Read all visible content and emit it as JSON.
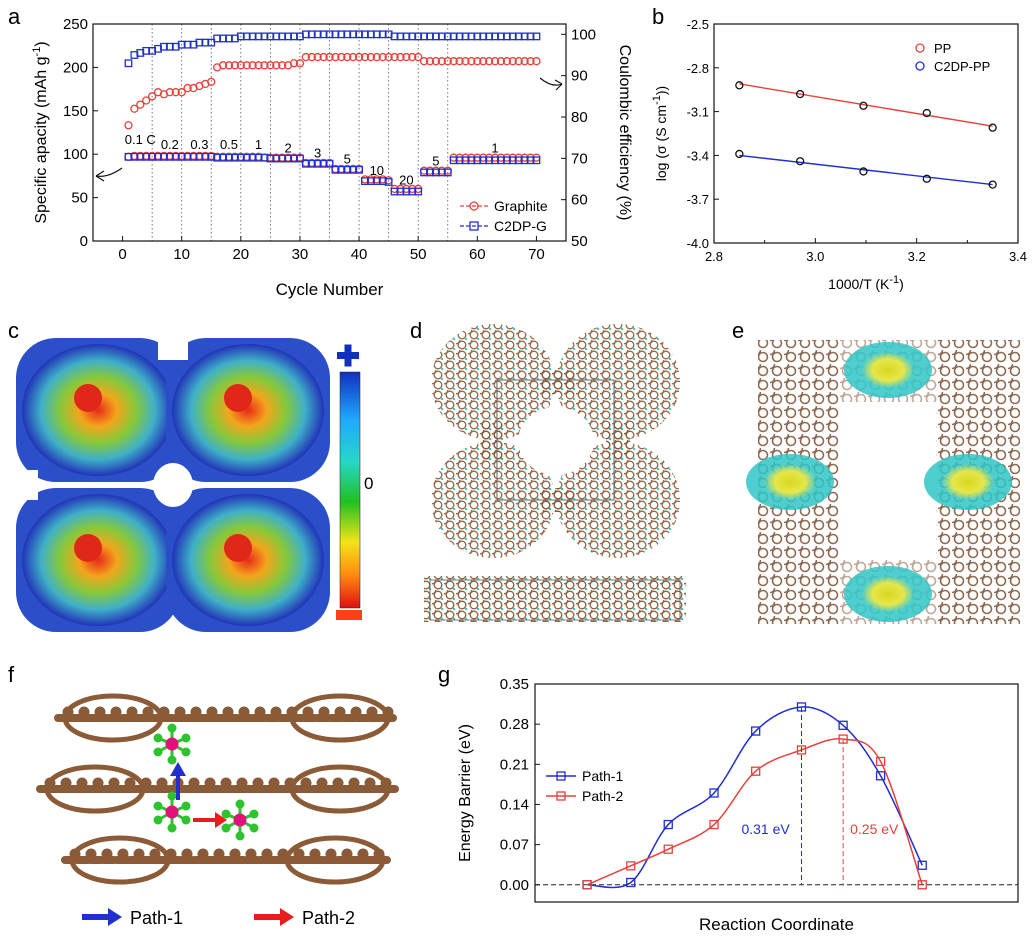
{
  "panels": {
    "a": "a",
    "b": "b",
    "c": "c",
    "d": "d",
    "e": "e",
    "f": "f",
    "g": "g"
  },
  "colors": {
    "red": "#e8403a",
    "blue": "#1f2fd0",
    "black": "#111111"
  },
  "chart_data": [
    {
      "id": "a",
      "type": "scatter",
      "title": "",
      "xlabel": "Cycle Number",
      "ylabel": "Specific apacity (mAh g-1)",
      "ylabel_parts": [
        "Specific apacity (mAh g",
        "-1",
        ")"
      ],
      "y2label": "Coulombic efficiency (%)",
      "xlim": [
        -5,
        75
      ],
      "ylim": [
        0,
        250
      ],
      "y2lim": [
        50,
        102.5
      ],
      "xticks": [
        0,
        10,
        20,
        30,
        40,
        50,
        60,
        70
      ],
      "yticks": [
        0,
        50,
        100,
        150,
        200,
        250
      ],
      "y2ticks": [
        50,
        60,
        70,
        80,
        90,
        100
      ],
      "vlines": [
        5,
        10,
        15,
        20,
        25,
        30,
        35,
        40,
        45,
        50,
        55
      ],
      "rate_labels": [
        {
          "text": "0.1 C",
          "x": 3,
          "y": 112
        },
        {
          "text": "0.2",
          "x": 8,
          "y": 106
        },
        {
          "text": "0.3",
          "x": 13,
          "y": 106
        },
        {
          "text": "0.5",
          "x": 18,
          "y": 106
        },
        {
          "text": "1",
          "x": 23,
          "y": 106
        },
        {
          "text": "2",
          "x": 28,
          "y": 102
        },
        {
          "text": "3",
          "x": 33,
          "y": 96
        },
        {
          "text": "5",
          "x": 38,
          "y": 89
        },
        {
          "text": "10",
          "x": 43,
          "y": 76
        },
        {
          "text": "20",
          "x": 48,
          "y": 65
        },
        {
          "text": "5",
          "x": 53,
          "y": 87
        },
        {
          "text": "1",
          "x": 63,
          "y": 102
        }
      ],
      "legend": [
        {
          "name": "Graphite",
          "color": "#e8403a",
          "marker": "circle"
        },
        {
          "name": "C2DP-G",
          "color": "#1f2fd0",
          "marker": "square"
        }
      ],
      "legend_position": "bottom-right",
      "series": [
        {
          "name": "Graphite capacity",
          "axis": "left",
          "color": "#e8403a",
          "marker": "circle",
          "x": [
            1,
            2,
            3,
            4,
            5,
            6,
            7,
            8,
            9,
            10,
            11,
            12,
            13,
            14,
            15,
            16,
            17,
            18,
            19,
            20,
            21,
            22,
            23,
            24,
            25,
            26,
            27,
            28,
            29,
            30,
            31,
            32,
            33,
            34,
            35,
            36,
            37,
            38,
            39,
            40,
            41,
            42,
            43,
            44,
            45,
            46,
            47,
            48,
            49,
            50,
            51,
            52,
            53,
            54,
            55,
            56,
            57,
            58,
            59,
            60,
            61,
            62,
            63,
            64,
            65,
            66,
            67,
            68,
            69,
            70
          ],
          "y": [
            97,
            98,
            98,
            98,
            98,
            98,
            98,
            98,
            98,
            98,
            98,
            98,
            98,
            98,
            98,
            97,
            97,
            97,
            97,
            97,
            97,
            97,
            97,
            96,
            96,
            96,
            96,
            96,
            96,
            96,
            90,
            90,
            90,
            90,
            90,
            83,
            83,
            83,
            83,
            83,
            71,
            71,
            71,
            71,
            70,
            60,
            60,
            60,
            60,
            60,
            81,
            81,
            81,
            81,
            81,
            96,
            96,
            96,
            96,
            96,
            96,
            96,
            96,
            96,
            96,
            96,
            96,
            96,
            96,
            96
          ]
        },
        {
          "name": "C2DP-G capacity",
          "axis": "left",
          "color": "#1f2fd0",
          "marker": "square",
          "x": [
            1,
            2,
            3,
            4,
            5,
            6,
            7,
            8,
            9,
            10,
            11,
            12,
            13,
            14,
            15,
            16,
            17,
            18,
            19,
            20,
            21,
            22,
            23,
            24,
            25,
            26,
            27,
            28,
            29,
            30,
            31,
            32,
            33,
            34,
            35,
            36,
            37,
            38,
            39,
            40,
            41,
            42,
            43,
            44,
            45,
            46,
            47,
            48,
            49,
            50,
            51,
            52,
            53,
            54,
            55,
            56,
            57,
            58,
            59,
            60,
            61,
            62,
            63,
            64,
            65,
            66,
            67,
            68,
            69,
            70
          ],
          "y": [
            97,
            97,
            97,
            97,
            97,
            97,
            97,
            97,
            97,
            97,
            97,
            97,
            97,
            97,
            97,
            96,
            96,
            96,
            96,
            96,
            96,
            96,
            96,
            96,
            95,
            95,
            95,
            95,
            95,
            95,
            89,
            89,
            89,
            89,
            89,
            82,
            82,
            82,
            82,
            82,
            69,
            69,
            69,
            69,
            68,
            57,
            57,
            57,
            57,
            57,
            79,
            79,
            79,
            79,
            79,
            93,
            93,
            93,
            93,
            93,
            93,
            93,
            93,
            93,
            93,
            93,
            93,
            93,
            93,
            93
          ]
        },
        {
          "name": "Graphite coulombic efficiency",
          "axis": "right",
          "color": "#e8403a",
          "marker": "circle",
          "x": [
            1,
            2,
            3,
            4,
            5,
            6,
            7,
            8,
            9,
            10,
            11,
            12,
            13,
            14,
            15,
            16,
            17,
            18,
            19,
            20,
            21,
            22,
            23,
            24,
            25,
            26,
            27,
            28,
            29,
            30,
            31,
            32,
            33,
            34,
            35,
            36,
            37,
            38,
            39,
            40,
            41,
            42,
            43,
            44,
            45,
            46,
            47,
            48,
            49,
            50,
            51,
            52,
            53,
            54,
            55,
            56,
            57,
            58,
            59,
            60,
            61,
            62,
            63,
            64,
            65,
            66,
            67,
            68,
            69,
            70
          ],
          "y": [
            78,
            82,
            83,
            84,
            85,
            86,
            85.5,
            86,
            86,
            86,
            87,
            87,
            87.5,
            88,
            88.5,
            92,
            92.5,
            92.5,
            92.5,
            92.5,
            92.5,
            92.5,
            92.5,
            92.5,
            92.5,
            92.5,
            92.5,
            92.5,
            93,
            93,
            94.5,
            94.5,
            94.5,
            94.5,
            94.5,
            94.5,
            94.5,
            94.5,
            94.5,
            94.5,
            94.5,
            94.5,
            94.5,
            94.5,
            94.5,
            94.5,
            94.5,
            94.5,
            94.5,
            94.5,
            93.5,
            93.5,
            93.5,
            93.5,
            93.5,
            93.5,
            93.5,
            93.5,
            93.5,
            93.5,
            93.5,
            93.5,
            93.5,
            93.5,
            93.5,
            93.5,
            93.5,
            93.5,
            93.5,
            93.5
          ]
        },
        {
          "name": "C2DP-G coulombic efficiency",
          "axis": "right",
          "color": "#1f2fd0",
          "marker": "square",
          "x": [
            1,
            2,
            3,
            4,
            5,
            6,
            7,
            8,
            9,
            10,
            11,
            12,
            13,
            14,
            15,
            16,
            17,
            18,
            19,
            20,
            21,
            22,
            23,
            24,
            25,
            26,
            27,
            28,
            29,
            30,
            31,
            32,
            33,
            34,
            35,
            36,
            37,
            38,
            39,
            40,
            41,
            42,
            43,
            44,
            45,
            46,
            47,
            48,
            49,
            50,
            51,
            52,
            53,
            54,
            55,
            56,
            57,
            58,
            59,
            60,
            61,
            62,
            63,
            64,
            65,
            66,
            67,
            68,
            69,
            70
          ],
          "y": [
            93,
            95,
            95.5,
            96,
            96,
            96.5,
            97,
            97,
            97,
            97.5,
            97.5,
            97.5,
            98,
            98,
            98,
            99,
            99,
            99,
            99,
            99.5,
            99.5,
            99.5,
            99.5,
            99.5,
            99.5,
            99.5,
            99.5,
            99.5,
            99.5,
            99.5,
            100,
            100,
            100,
            100,
            100,
            100,
            100,
            100,
            100,
            100,
            100,
            100,
            100,
            100,
            100,
            99.5,
            99.5,
            99.5,
            99.5,
            99.5,
            99.5,
            99.5,
            99.5,
            99.5,
            99.5,
            99.5,
            99.5,
            99.5,
            99.5,
            99.5,
            99.5,
            99.5,
            99.5,
            99.5,
            99.5,
            99.5,
            99.5,
            99.5,
            99.5,
            99.5
          ]
        }
      ]
    },
    {
      "id": "b",
      "type": "scatter",
      "title": "",
      "xlabel": "1000/T (K-1)",
      "xlabel_parts": [
        "1000/T (K",
        "-1",
        ")"
      ],
      "ylabel": "log (σ (S cm-1))",
      "ylabel_parts": [
        "log (σ (S cm",
        "-1",
        "))"
      ],
      "xlim": [
        2.8,
        3.4
      ],
      "ylim": [
        -4.0,
        -2.5
      ],
      "xticks": [
        2.8,
        2.9,
        3.0,
        3.1,
        3.2,
        3.3,
        3.4
      ],
      "xticklabels": [
        "2.8",
        "3.0",
        "3.2",
        "3.4"
      ],
      "yticks": [
        -4.0,
        -3.7,
        -3.4,
        -3.1,
        -2.8,
        -2.5
      ],
      "legend": [
        {
          "name": "PP",
          "color": "#e8403a"
        },
        {
          "name": "C2DP-PP",
          "color": "#1f2fd0"
        }
      ],
      "legend_position": "top-right",
      "series": [
        {
          "name": "PP",
          "color": "#e8403a",
          "x": [
            2.85,
            2.97,
            3.095,
            3.22,
            3.35
          ],
          "y": [
            -2.92,
            -2.98,
            -3.06,
            -3.11,
            -3.21
          ],
          "fit": [
            [
              2.85,
              -2.91
            ],
            [
              3.35,
              -3.2
            ]
          ]
        },
        {
          "name": "C2DP-PP",
          "color": "#1f2fd0",
          "x": [
            2.85,
            2.97,
            3.095,
            3.22,
            3.35
          ],
          "y": [
            -3.39,
            -3.44,
            -3.51,
            -3.56,
            -3.6
          ],
          "fit": [
            [
              2.85,
              -3.4
            ],
            [
              3.35,
              -3.6
            ]
          ]
        }
      ]
    },
    {
      "id": "g",
      "type": "line",
      "title": "",
      "xlabel": "Reaction Coordinate",
      "ylabel": "Energy Barrier (eV)",
      "xlim": [
        0,
        11.6
      ],
      "ylim": [
        -0.03,
        0.35
      ],
      "yticks": [
        0.0,
        0.07,
        0.14,
        0.21,
        0.28,
        0.35
      ],
      "yticklabels": [
        "0.00",
        "0.07",
        "0.14",
        "0.21",
        "0.28",
        "0.35"
      ],
      "legend": [
        {
          "name": "Path-1",
          "color": "#1f2fd0"
        },
        {
          "name": "Path-2",
          "color": "#e8403a"
        }
      ],
      "legend_position": "left",
      "series": [
        {
          "name": "Path-1",
          "color": "#1f2fd0",
          "x": [
            1.25,
            2.3,
            3.2,
            4.3,
            5.3,
            6.4,
            7.4,
            8.3,
            9.3
          ],
          "y": [
            0.0,
            0.004,
            0.105,
            0.16,
            0.268,
            0.31,
            0.278,
            0.19,
            0.034
          ]
        },
        {
          "name": "Path-2",
          "color": "#e8403a",
          "x": [
            1.25,
            2.3,
            3.2,
            4.3,
            5.3,
            6.4,
            7.4,
            8.3,
            9.3
          ],
          "y": [
            0.0,
            0.033,
            0.062,
            0.105,
            0.198,
            0.235,
            0.254,
            0.215,
            0.0
          ]
        }
      ],
      "annotations": [
        {
          "text": "0.31 eV",
          "color": "#1f2fd0",
          "x": 6.4,
          "value": 0.31
        },
        {
          "text": "0.25 eV",
          "color": "#e8403a",
          "x": 7.4,
          "value": 0.254
        }
      ]
    }
  ],
  "panel_f": {
    "legend": [
      {
        "label": "Path-1",
        "color": "#1f2fd0"
      },
      {
        "label": "Path-2",
        "color": "#e8403a"
      }
    ]
  },
  "panel_c": {
    "scale_zero": "0"
  }
}
